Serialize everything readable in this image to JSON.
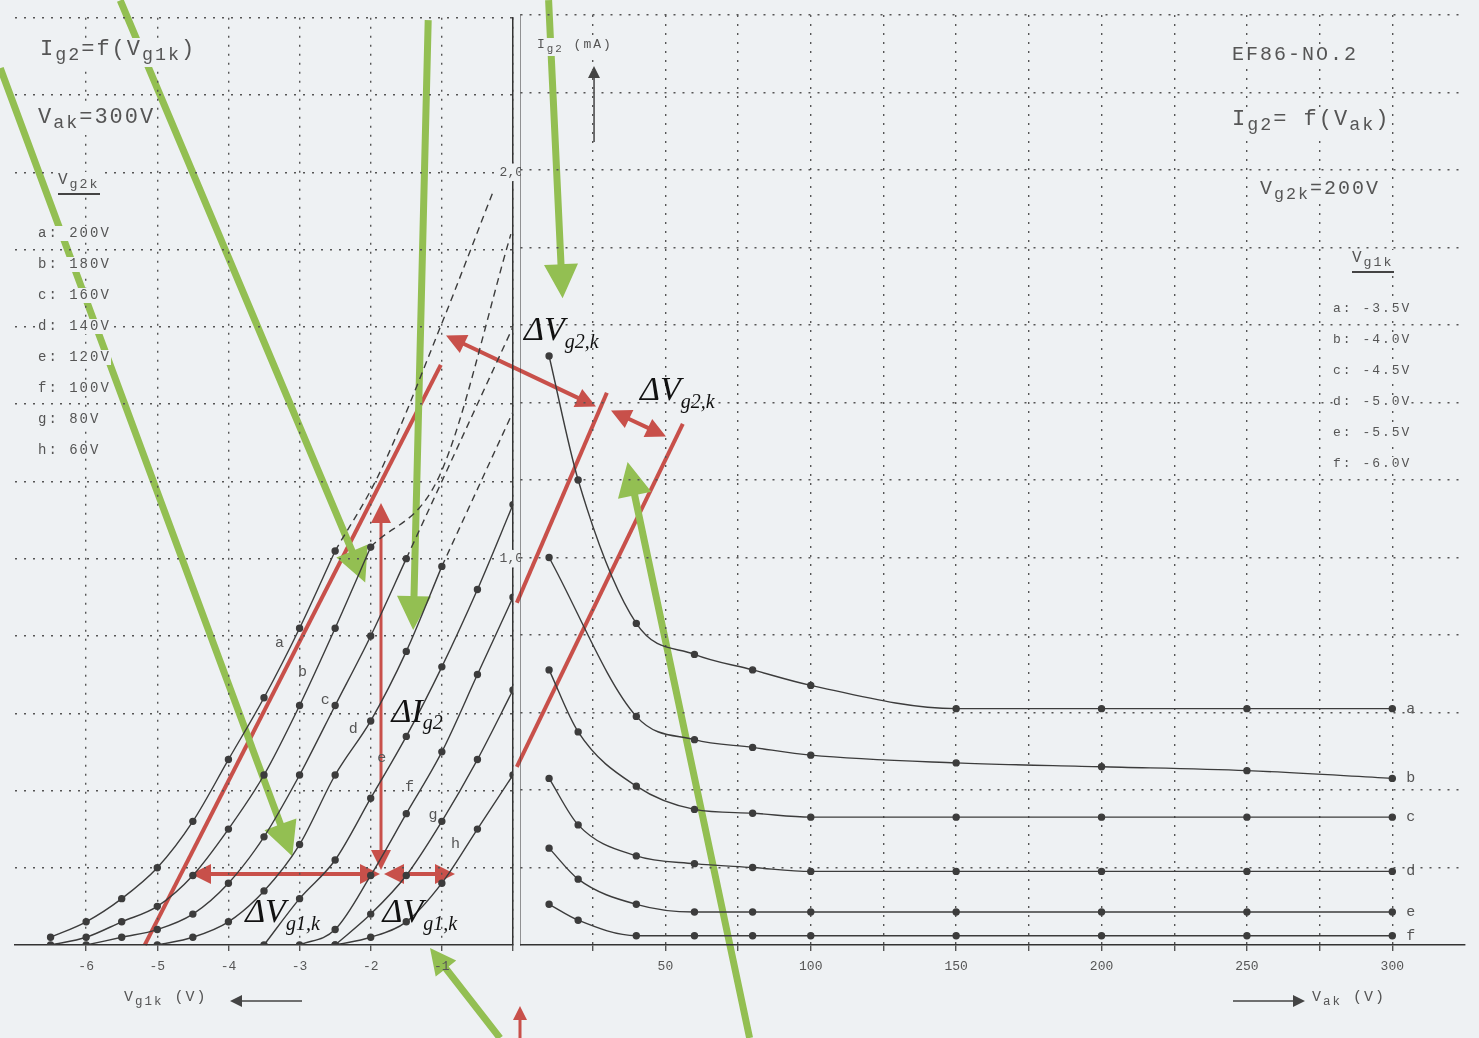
{
  "chart_data": [
    {
      "type": "line",
      "xlabel": "V$_{g1k}$ (V)",
      "xlim": [
        -7,
        0
      ],
      "ylim": [
        0,
        2.4
      ],
      "grid": true,
      "marker": "circle",
      "xticks": [
        -6,
        -5,
        -4,
        -3,
        -2,
        -1,
        {
          "value": 0,
          "label": null
        }
      ],
      "yticks": [
        {
          "value": 0.2,
          "label": null
        },
        {
          "value": 0.4,
          "label": null
        },
        {
          "value": 0.6,
          "label": null
        },
        {
          "value": 0.8,
          "label": null
        },
        {
          "value": 1,
          "label": "1,0"
        },
        {
          "value": 1.2,
          "label": null
        },
        {
          "value": 1.4,
          "label": null
        },
        {
          "value": 1.6,
          "label": null
        },
        {
          "value": 1.8,
          "label": null
        },
        {
          "value": 2,
          "label": "2,0"
        },
        {
          "value": 2.2,
          "label": null
        },
        {
          "value": 2.4,
          "label": null
        }
      ],
      "annotations": [
        "I$_{g2}$=f(V$_{g1k}$)",
        "V$_{ak}$=300V",
        "V$_{g2k}$",
        "a: 200V",
        "b: 180V",
        "c: 160V",
        "d: 140V",
        "e: 120V",
        "f: 100V",
        "g:  80V",
        "h:  60V",
        {
          "text": "ΔV$_{g1,k}$",
          "x": -3.3,
          "y": 0.18
        },
        {
          "text": "ΔV$_{g1,k}$",
          "x": -1.4,
          "y": 0.18
        },
        {
          "text": "ΔI$_{g2}$",
          "x": -1.93,
          "y": 0.6
        }
      ],
      "series": [
        {
          "name": "a",
          "color": "#3c3c3c",
          "x": [
            -6.5,
            -6,
            -5.5,
            -5,
            -4.5,
            -4,
            -3.5,
            -3,
            -2.5
          ],
          "values": [
            0.02,
            0.06,
            0.12,
            0.2,
            0.32,
            0.48,
            0.64,
            0.82,
            1.02
          ]
        },
        {
          "name": "b",
          "color": "#3c3c3c",
          "x": [
            -6.5,
            -6,
            -5.5,
            -5,
            -4.5,
            -4,
            -3.5,
            -3,
            -2.5,
            -2
          ],
          "values": [
            0,
            0.02,
            0.06,
            0.1,
            0.18,
            0.3,
            0.44,
            0.62,
            0.82,
            1.03
          ]
        },
        {
          "name": "c",
          "color": "#3c3c3c",
          "x": [
            -6,
            -5.5,
            -5,
            -4.5,
            -4,
            -3.5,
            -3,
            -2.5,
            -2,
            -1.5
          ],
          "values": [
            0,
            0.02,
            0.04,
            0.08,
            0.16,
            0.28,
            0.44,
            0.62,
            0.8,
            1.0
          ]
        },
        {
          "name": "d",
          "color": "#3c3c3c",
          "x": [
            -5,
            -4.5,
            -4,
            -3.5,
            -3,
            -2.5,
            -2,
            -1.5,
            -1
          ],
          "values": [
            0,
            0.02,
            0.06,
            0.14,
            0.26,
            0.44,
            0.58,
            0.76,
            0.98
          ]
        },
        {
          "name": "e",
          "color": "#3c3c3c",
          "x": [
            -3.5,
            -3,
            -2.5,
            -2,
            -1.5,
            -1,
            -0.5,
            0
          ],
          "values": [
            0,
            0.12,
            0.22,
            0.38,
            0.54,
            0.72,
            0.92,
            1.14
          ]
        },
        {
          "name": "f",
          "color": "#3c3c3c",
          "x": [
            -3,
            -2.5,
            -2,
            -1.5,
            -1,
            -0.5,
            0
          ],
          "values": [
            0,
            0.04,
            0.18,
            0.34,
            0.5,
            0.7,
            0.9
          ]
        },
        {
          "name": "g",
          "color": "#3c3c3c",
          "x": [
            -2.5,
            -2,
            -1.5,
            -1,
            -0.5,
            0
          ],
          "values": [
            0,
            0.08,
            0.18,
            0.32,
            0.48,
            0.66
          ]
        },
        {
          "name": "h",
          "color": "#3c3c3c",
          "x": [
            -2.5,
            -2,
            -1.5,
            -1,
            -0.5,
            0
          ],
          "values": [
            0,
            0.02,
            0.06,
            0.16,
            0.3,
            0.44
          ]
        },
        {
          "color": "#3c3c3c",
          "marker": "none",
          "line_style": "dashed",
          "x": [
            -2.5,
            -1.88,
            -1.02,
            -0.28
          ],
          "values": [
            1.02,
            1.22,
            1.6,
            1.95
          ]
        },
        {
          "color": "#3c3c3c",
          "marker": "none",
          "line_style": "dashed",
          "x": [
            -2,
            -1.02,
            -0.03
          ],
          "values": [
            1.03,
            1.22,
            1.84
          ]
        },
        {
          "color": "#3c3c3c",
          "marker": "none",
          "line_style": "dashed",
          "x": [
            -1.5,
            0
          ],
          "values": [
            1.0,
            1.6
          ]
        },
        {
          "color": "#3c3c3c",
          "marker": "none",
          "line_style": "dashed",
          "x": [
            -1,
            0
          ],
          "values": [
            0.98,
            1.38
          ]
        }
      ]
    },
    {
      "type": "line",
      "title": "EF86-NO.2",
      "xlabel": "V$_{ak}$ (V)",
      "ylabel": "I$_{g2}$ (mA)",
      "xlim": [
        0,
        325
      ],
      "ylim": [
        0,
        2.4
      ],
      "grid": true,
      "marker": "circle",
      "tick_labels": "x",
      "xticks": [
        {
          "value": 25,
          "label": null
        },
        50,
        {
          "value": 75,
          "label": null
        },
        100,
        {
          "value": 125,
          "label": null
        },
        150,
        {
          "value": 175,
          "label": null
        },
        200,
        {
          "value": 225,
          "label": null
        },
        250,
        {
          "value": 275,
          "label": null
        },
        300
      ],
      "yticks": [
        {
          "value": 0.2,
          "label": null
        },
        {
          "value": 0.4,
          "label": null
        },
        {
          "value": 0.6,
          "label": null
        },
        {
          "value": 0.8,
          "label": null
        },
        {
          "value": 1,
          "label": null
        },
        {
          "value": 1.2,
          "label": null
        },
        {
          "value": 1.4,
          "label": null
        },
        {
          "value": 1.6,
          "label": null
        },
        {
          "value": 1.8,
          "label": null
        },
        {
          "value": 2,
          "label": null
        },
        {
          "value": 2.2,
          "label": null
        },
        {
          "value": 2.4,
          "label": null
        }
      ],
      "annotations": [
        "I$_{g2}$= f(V$_{ak}$)",
        "V$_{g2k}$=200V",
        "V$_{g1k}$",
        "a:  -3.5V",
        "b:  -4.0V",
        "c:  -4.5V",
        "d:  -5.0V",
        "e:  -5.5V",
        "f:  -6.0V",
        "ΔV$_{g2,k}$",
        "ΔV$_{g2,k}$"
      ],
      "series": [
        {
          "name": "a",
          "color": "#3c3c3c",
          "x": [
            10,
            20,
            40,
            60,
            80,
            100,
            150,
            200,
            250,
            300
          ],
          "values": [
            1.52,
            1.2,
            0.83,
            0.75,
            0.71,
            0.67,
            0.61,
            0.61,
            0.61,
            0.61
          ]
        },
        {
          "name": "b",
          "color": "#3c3c3c",
          "x": [
            10,
            40,
            60,
            80,
            100,
            150,
            200,
            250,
            300
          ],
          "values": [
            1.0,
            0.59,
            0.53,
            0.51,
            0.49,
            0.47,
            0.46,
            0.45,
            0.43
          ]
        },
        {
          "name": "c",
          "color": "#3c3c3c",
          "x": [
            10,
            20,
            40,
            60,
            80,
            100,
            150,
            200,
            250,
            300
          ],
          "values": [
            0.71,
            0.55,
            0.41,
            0.35,
            0.34,
            0.33,
            0.33,
            0.33,
            0.33,
            0.33
          ]
        },
        {
          "name": "d",
          "color": "#3c3c3c",
          "x": [
            10,
            20,
            40,
            60,
            80,
            100,
            150,
            200,
            250,
            300
          ],
          "values": [
            0.43,
            0.31,
            0.23,
            0.21,
            0.2,
            0.19,
            0.19,
            0.19,
            0.19,
            0.19
          ]
        },
        {
          "name": "e",
          "color": "#3c3c3c",
          "x": [
            10,
            20,
            40,
            60,
            80,
            100,
            150,
            200,
            250,
            300
          ],
          "values": [
            0.25,
            0.17,
            0.105,
            0.085,
            0.085,
            0.085,
            0.085,
            0.085,
            0.085,
            0.085
          ]
        },
        {
          "name": "f",
          "color": "#3c3c3c",
          "x": [
            10,
            20,
            40,
            60,
            80,
            100,
            150,
            200,
            250,
            300
          ],
          "values": [
            0.105,
            0.064,
            0.024,
            0.024,
            0.024,
            0.024,
            0.024,
            0.024,
            0.024,
            0.024
          ]
        }
      ]
    }
  ]
}
